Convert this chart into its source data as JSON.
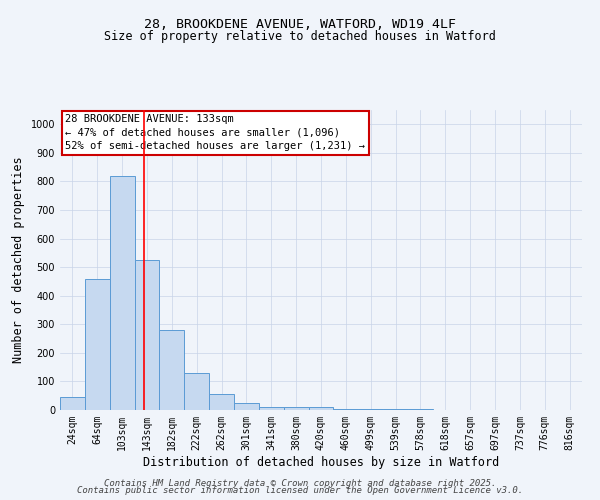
{
  "title_line1": "28, BROOKDENE AVENUE, WATFORD, WD19 4LF",
  "title_line2": "Size of property relative to detached houses in Watford",
  "xlabel": "Distribution of detached houses by size in Watford",
  "ylabel": "Number of detached properties",
  "categories": [
    "24sqm",
    "64sqm",
    "103sqm",
    "143sqm",
    "182sqm",
    "222sqm",
    "262sqm",
    "301sqm",
    "341sqm",
    "380sqm",
    "420sqm",
    "460sqm",
    "499sqm",
    "539sqm",
    "578sqm",
    "618sqm",
    "657sqm",
    "697sqm",
    "737sqm",
    "776sqm",
    "816sqm"
  ],
  "values": [
    45,
    460,
    820,
    525,
    280,
    130,
    55,
    25,
    10,
    12,
    12,
    5,
    5,
    5,
    2,
    1,
    1,
    0,
    0,
    0,
    0
  ],
  "bar_color": "#c6d9f0",
  "bar_edge_color": "#5b9bd5",
  "red_line_x": 2.88,
  "annotation_text": "28 BROOKDENE AVENUE: 133sqm\n← 47% of detached houses are smaller (1,096)\n52% of semi-detached houses are larger (1,231) →",
  "annotation_box_color": "#ffffff",
  "annotation_box_edge": "#cc0000",
  "ylim": [
    0,
    1050
  ],
  "yticks": [
    0,
    100,
    200,
    300,
    400,
    500,
    600,
    700,
    800,
    900,
    1000
  ],
  "bg_color": "#f0f4fa",
  "grid_color": "#c8d4e8",
  "footer_line1": "Contains HM Land Registry data © Crown copyright and database right 2025.",
  "footer_line2": "Contains public sector information licensed under the Open Government Licence v3.0.",
  "title_fontsize": 9.5,
  "subtitle_fontsize": 8.5,
  "axis_label_fontsize": 8.5,
  "tick_fontsize": 7,
  "annotation_fontsize": 7.5,
  "footer_fontsize": 6.5
}
